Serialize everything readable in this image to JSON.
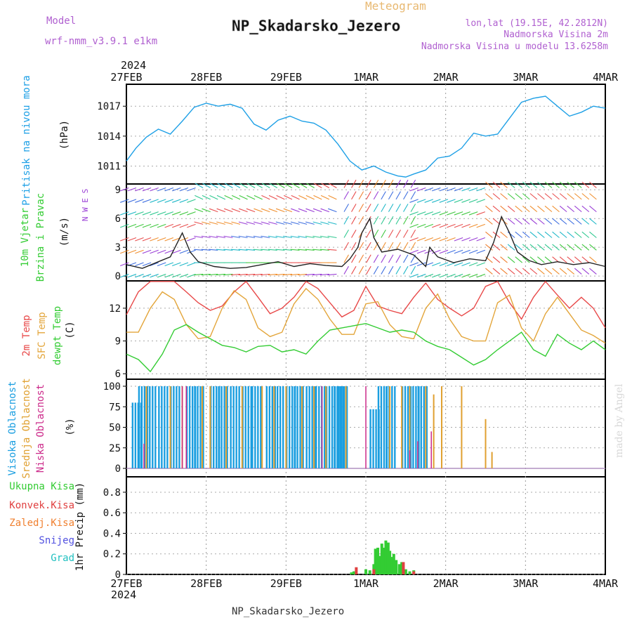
{
  "header": {
    "model_label": "Model",
    "model_name": "wrf-nmm_v3.9.1  e1km",
    "meteogram_label": "Meteogram",
    "station_title": "NP_Skadarsko_Jezero",
    "lonlat": "lon,lat (19.15E, 42.2812N)",
    "elevation": "Nadmorska Visina 2m",
    "model_elevation": "Nadmorska Visina u modelu 13.6258m",
    "year": "2024",
    "footer_station": "NP_Skadarsko_Jezero",
    "watermark": "made by Angel"
  },
  "time_axis": {
    "ticks": [
      "27FEB",
      "28FEB",
      "29FEB",
      "1MAR",
      "2MAR",
      "3MAR",
      "4MAR"
    ],
    "year_bottom": "2024"
  },
  "colors": {
    "pressure": "#1ea0e6",
    "temp2m": "#e84848",
    "sfc_temp": "#e3a53a",
    "dewpoint": "#33cc33",
    "wind_purple": "#9a3fd6",
    "high_cloud": "#1a9ee0",
    "mid_cloud": "#e0a030",
    "low_cloud": "#cc2a8a",
    "total_precip": "#33cc33",
    "conv_precip": "#e04040",
    "frozen_precip": "#f08030",
    "snow": "#5050e0",
    "graupel": "#20c0c0"
  },
  "chart_data": [
    {
      "type": "line",
      "name": "pressure",
      "ylabel_1": "Pritisak na nivou mora",
      "ylabel_2": "(hPa)",
      "yticks": [
        "1017",
        "1014",
        "1011"
      ],
      "ylim": [
        1009.2,
        1019.2
      ],
      "x_days": [
        0,
        0.12,
        0.25,
        0.4,
        0.55,
        0.7,
        0.85,
        1.0,
        1.15,
        1.3,
        1.45,
        1.6,
        1.75,
        1.9,
        2.05,
        2.2,
        2.35,
        2.5,
        2.65,
        2.8,
        2.95,
        3.1,
        3.25,
        3.4,
        3.5,
        3.6,
        3.75,
        3.9,
        4.05,
        4.2,
        4.35,
        4.5,
        4.65,
        4.8,
        4.95,
        5.1,
        5.25,
        5.4,
        5.55,
        5.7,
        5.85,
        6.0
      ],
      "values": [
        1011.5,
        1012.8,
        1013.9,
        1014.7,
        1014.2,
        1015.5,
        1016.9,
        1017.3,
        1017.0,
        1017.2,
        1016.8,
        1015.2,
        1014.6,
        1015.6,
        1016.0,
        1015.5,
        1015.3,
        1014.6,
        1013.2,
        1011.5,
        1010.6,
        1011.0,
        1010.4,
        1010.0,
        1009.9,
        1010.2,
        1010.6,
        1011.8,
        1012.0,
        1012.8,
        1014.3,
        1014.0,
        1014.2,
        1015.8,
        1017.4,
        1017.8,
        1018.0,
        1017.0,
        1016.0,
        1016.4,
        1017.0,
        1016.8
      ]
    },
    {
      "type": "line",
      "name": "wind",
      "ylabel_1": "10m Vjetar",
      "ylabel_2": "Brzina i Pravac",
      "ylabel_3": "(m/s)",
      "compass": "N W E S",
      "yticks": [
        "9",
        "6",
        "3",
        "0"
      ],
      "ylim": [
        -0.5,
        9.6
      ],
      "x_days": [
        0,
        0.2,
        0.4,
        0.55,
        0.7,
        0.8,
        0.9,
        1.1,
        1.3,
        1.5,
        1.7,
        1.9,
        2.1,
        2.3,
        2.5,
        2.7,
        2.8,
        2.9,
        2.95,
        3.05,
        3.1,
        3.2,
        3.4,
        3.6,
        3.75,
        3.8,
        3.9,
        4.1,
        4.3,
        4.5,
        4.6,
        4.7,
        4.8,
        4.9,
        5.05,
        5.2,
        5.4,
        5.6,
        5.8,
        6.0
      ],
      "values": [
        1.2,
        0.8,
        1.5,
        2.0,
        4.5,
        2.5,
        1.5,
        1.0,
        0.8,
        0.9,
        1.2,
        1.5,
        1.0,
        1.3,
        1.1,
        1.0,
        1.8,
        3.0,
        4.5,
        6.0,
        4.0,
        2.5,
        2.8,
        2.2,
        1.0,
        3.0,
        2.0,
        1.4,
        1.8,
        1.6,
        3.5,
        6.2,
        4.5,
        2.5,
        1.6,
        1.2,
        1.5,
        1.2,
        1.4,
        1.0
      ]
    },
    {
      "type": "line",
      "name": "temperature",
      "ylabel_1": "2m Temp",
      "ylabel_2": "SFC Temp",
      "ylabel_3": "dewpt Temp",
      "ylabel_4": "(C)",
      "yticks": [
        "12",
        "9",
        "6"
      ],
      "ylim": [
        5.5,
        14.5
      ],
      "x_days": [
        0,
        0.15,
        0.3,
        0.45,
        0.6,
        0.75,
        0.9,
        1.05,
        1.2,
        1.35,
        1.5,
        1.65,
        1.8,
        1.95,
        2.1,
        2.25,
        2.4,
        2.55,
        2.7,
        2.85,
        3.0,
        3.15,
        3.3,
        3.45,
        3.6,
        3.75,
        3.9,
        4.05,
        4.2,
        4.35,
        4.5,
        4.65,
        4.8,
        4.95,
        5.1,
        5.25,
        5.4,
        5.55,
        5.7,
        5.85,
        6.0
      ],
      "series": [
        {
          "name": "2m Temp",
          "values": [
            11.4,
            13.5,
            14.5,
            14.5,
            14.6,
            13.5,
            12.5,
            11.8,
            12.2,
            13.5,
            14.5,
            13.0,
            11.5,
            12.0,
            13.0,
            14.5,
            13.8,
            12.5,
            11.2,
            11.8,
            14.0,
            12.2,
            11.8,
            11.5,
            13.0,
            14.3,
            12.8,
            12.0,
            11.3,
            12.0,
            14.0,
            14.5,
            12.5,
            11.0,
            13.0,
            14.5,
            13.2,
            12.0,
            13.0,
            12.0,
            10.2
          ]
        },
        {
          "name": "SFC Temp",
          "values": [
            9.8,
            9.8,
            12.0,
            13.5,
            12.8,
            10.5,
            9.2,
            9.4,
            12.0,
            13.6,
            12.8,
            10.2,
            9.4,
            9.8,
            12.4,
            13.8,
            12.8,
            11.0,
            9.6,
            9.6,
            12.4,
            12.6,
            10.5,
            9.4,
            9.2,
            12.0,
            13.3,
            11.0,
            9.4,
            9.0,
            9.0,
            12.5,
            13.2,
            10.2,
            9.0,
            11.5,
            13.0,
            11.5,
            10.0,
            9.5,
            8.8
          ]
        },
        {
          "name": "dewpt Temp",
          "values": [
            7.8,
            7.3,
            6.2,
            7.8,
            10.0,
            10.5,
            9.8,
            9.2,
            8.6,
            8.4,
            8.0,
            8.5,
            8.6,
            8.0,
            8.2,
            7.8,
            9.0,
            10.0,
            10.2,
            10.4,
            10.6,
            10.2,
            9.8,
            10.0,
            9.8,
            9.0,
            8.5,
            8.2,
            7.5,
            6.8,
            7.3,
            8.2,
            9.0,
            9.8,
            8.2,
            7.6,
            9.6,
            8.8,
            8.2,
            9.0,
            8.2
          ]
        }
      ]
    },
    {
      "type": "bar",
      "name": "clouds",
      "ylabel_1": "Visoka Oblacnost",
      "ylabel_2": "Srednja Oblacnost",
      "ylabel_3": "Niska Oblacnost",
      "ylabel_4": "(%)",
      "yticks": [
        "100",
        "75",
        "50",
        "25",
        "0"
      ],
      "ylim": [
        0,
        100
      ],
      "series": [
        {
          "name": "Visoka Oblacnost",
          "x_days": [
            0.12,
            0.2,
            0.3,
            0.45,
            0.6,
            0.8,
            0.9,
            1.1,
            1.2,
            1.35,
            1.5,
            1.62,
            1.8,
            1.9,
            2.05,
            2.15,
            2.3,
            2.42,
            2.55,
            2.65,
            2.7,
            3.1,
            3.2,
            3.3,
            3.5,
            3.6,
            3.7
          ],
          "values": [
            80,
            100,
            100,
            100,
            100,
            100,
            100,
            100,
            100,
            100,
            100,
            100,
            100,
            100,
            100,
            100,
            100,
            100,
            100,
            100,
            100,
            72,
            100,
            100,
            100,
            100,
            100
          ]
        },
        {
          "name": "Srednja Oblacnost",
          "x_days": [
            0.25,
            0.55,
            0.7,
            0.95,
            1.05,
            1.25,
            1.45,
            1.7,
            1.85,
            2.0,
            2.2,
            2.35,
            2.5,
            2.75,
            3.3,
            3.45,
            3.55,
            3.75,
            3.85,
            3.95,
            4.2,
            4.5,
            4.58
          ],
          "values": [
            100,
            100,
            100,
            100,
            100,
            100,
            100,
            100,
            100,
            100,
            100,
            100,
            100,
            100,
            100,
            100,
            100,
            100,
            90,
            100,
            100,
            60,
            20
          ]
        },
        {
          "name": "Niska Oblacnost",
          "x_days": [
            0.22,
            0.7,
            0.75,
            2.45,
            3.0,
            3.55,
            3.65,
            3.82
          ],
          "values": [
            30,
            100,
            100,
            100,
            100,
            22,
            33,
            45
          ]
        }
      ]
    },
    {
      "type": "bar",
      "name": "precip",
      "ylabel": "1hr Precip (mm)",
      "yticks": [
        "0.8",
        "0.6",
        "0.4",
        "0.2",
        "0"
      ],
      "ylim": [
        0,
        0.95
      ],
      "legend": [
        "Ukupna Kisa",
        "Konvek.Kisa",
        "Zaledj.Kisa",
        "Snijeg",
        "Grad"
      ],
      "series": [
        {
          "name": "Ukupna Kisa",
          "x_days": [
            2.82,
            2.85,
            3.0,
            3.05,
            3.1,
            3.12,
            3.15,
            3.18,
            3.2,
            3.23,
            3.25,
            3.28,
            3.3,
            3.33,
            3.35,
            3.38,
            3.42,
            3.45,
            3.5,
            3.55,
            3.6
          ],
          "values": [
            0.02,
            0.03,
            0.05,
            0.04,
            0.1,
            0.25,
            0.26,
            0.18,
            0.3,
            0.26,
            0.33,
            0.31,
            0.23,
            0.17,
            0.2,
            0.14,
            0.1,
            0.12,
            0.05,
            0.03,
            0.04
          ]
        },
        {
          "name": "Konvek.Kisa",
          "x_days": [
            2.88,
            3.1,
            3.47,
            3.6
          ],
          "values": [
            0.07,
            0.05,
            0.12,
            0.03
          ]
        }
      ]
    }
  ]
}
